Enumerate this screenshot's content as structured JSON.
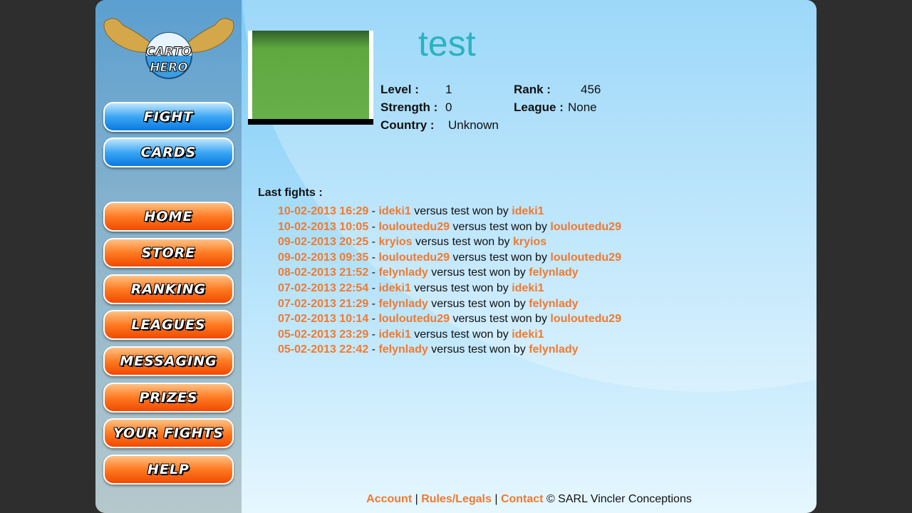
{
  "logo": {
    "text": "CARTO HERO"
  },
  "nav_blue": [
    "FIGHT",
    "CARDS"
  ],
  "nav_orange": [
    "HOME",
    "STORE",
    "RANKING",
    "LEAGUES",
    "MESSAGING",
    "PRIZES",
    "YOUR FIGHTS",
    "HELP"
  ],
  "profile": {
    "name": "test",
    "level_label": "Level :",
    "level": "1",
    "rank_label": "Rank :",
    "rank": "456",
    "strength_label": "Strength :",
    "strength": "0",
    "league_label": "League :",
    "league": "None",
    "country_label": "Country :",
    "country": "Unknown"
  },
  "last_fights_label": "Last fights :",
  "fights": [
    {
      "date": "10-02-2013 16:29",
      "p1": "ideki1",
      "p2": "test",
      "winner": "ideki1"
    },
    {
      "date": "10-02-2013 10:05",
      "p1": "louloutedu29",
      "p2": "test",
      "winner": "louloutedu29"
    },
    {
      "date": "09-02-2013 20:25",
      "p1": "kryios",
      "p2": "test",
      "winner": "kryios"
    },
    {
      "date": "09-02-2013 09:35",
      "p1": "louloutedu29",
      "p2": "test",
      "winner": "louloutedu29"
    },
    {
      "date": "08-02-2013 21:52",
      "p1": "felynlady",
      "p2": "test",
      "winner": "felynlady"
    },
    {
      "date": "07-02-2013 22:54",
      "p1": "ideki1",
      "p2": "test",
      "winner": "ideki1"
    },
    {
      "date": "07-02-2013 21:29",
      "p1": "felynlady",
      "p2": "test",
      "winner": "felynlady"
    },
    {
      "date": "07-02-2013 10:14",
      "p1": "louloutedu29",
      "p2": "test",
      "winner": "louloutedu29"
    },
    {
      "date": "05-02-2013 23:29",
      "p1": "ideki1",
      "p2": "test",
      "winner": "ideki1"
    },
    {
      "date": "05-02-2013 22:42",
      "p1": "felynlady",
      "p2": "test",
      "winner": "felynlady"
    }
  ],
  "fight_words": {
    "sep": " - ",
    "versus": " versus ",
    "won_by": " won by "
  },
  "footer": {
    "account": "Account",
    "rules": "Rules/Legals",
    "contact": "Contact",
    "sep": " | ",
    "copyright": " © SARL Vincler Conceptions"
  }
}
